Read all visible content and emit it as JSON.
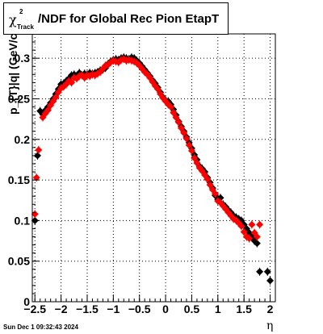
{
  "title": {
    "chi": "χ",
    "sup": "2",
    "sub": "Track",
    "rest": "/NDF for Global Rec Pion EtapT"
  },
  "ylabel": "p_{T}|q| (GeV/c",
  "xlabel": "η",
  "timestamp": "Sun Dec  1 09:32:43 2024",
  "colors": {
    "series_black": "#000000",
    "series_red": "#ff0000",
    "grid": "#000000"
  },
  "chart_data": {
    "type": "scatter",
    "title": "χ²_Track/NDF for Global Rec Pion EtapT",
    "xlabel": "η",
    "ylabel": "p_{T}|q| (GeV/c",
    "xlim": [
      -2.55,
      2.1
    ],
    "ylim": [
      0,
      0.33
    ],
    "grid": true,
    "xticks": [
      -2.5,
      -2,
      -1.5,
      -1,
      -0.5,
      0,
      0.5,
      1,
      1.5,
      2
    ],
    "xtick_labels": [
      "−2.5",
      "−2",
      "−1.5",
      "−1",
      "−0.5",
      "0",
      "0.5",
      "1",
      "1.5",
      "2"
    ],
    "yticks": [
      0,
      0.05,
      0.1,
      0.15,
      0.2,
      0.25,
      0.3
    ],
    "ytick_labels": [
      "0",
      "0.05",
      "0.1",
      "0.15",
      "0.2",
      "0.25",
      "0.3"
    ],
    "series": [
      {
        "color": "#000000",
        "points": [
          [
            -2.5,
            0.1
          ],
          [
            -2.45,
            0.18
          ],
          [
            -2.4,
            0.235
          ],
          [
            -2.35,
            0.231
          ],
          [
            -2.3,
            0.236
          ],
          [
            -2.25,
            0.24
          ],
          [
            -2.2,
            0.245
          ],
          [
            -2.15,
            0.25
          ],
          [
            -2.1,
            0.256
          ],
          [
            -2.05,
            0.262
          ],
          [
            -2.0,
            0.268
          ],
          [
            -1.95,
            0.269
          ],
          [
            -1.9,
            0.272
          ],
          [
            -1.85,
            0.275
          ],
          [
            -1.8,
            0.279
          ],
          [
            -1.75,
            0.28
          ],
          [
            -1.7,
            0.278
          ],
          [
            -1.65,
            0.282
          ],
          [
            -1.6,
            0.279
          ],
          [
            -1.55,
            0.281
          ],
          [
            -1.5,
            0.28
          ],
          [
            -1.45,
            0.282
          ],
          [
            -1.4,
            0.281
          ],
          [
            -1.35,
            0.282
          ],
          [
            -1.3,
            0.283
          ],
          [
            -1.25,
            0.285
          ],
          [
            -1.2,
            0.286
          ],
          [
            -1.15,
            0.288
          ],
          [
            -1.1,
            0.293
          ],
          [
            -1.05,
            0.296
          ],
          [
            -1.0,
            0.298
          ],
          [
            -0.95,
            0.299
          ],
          [
            -0.9,
            0.298
          ],
          [
            -0.85,
            0.3
          ],
          [
            -0.8,
            0.301
          ],
          [
            -0.75,
            0.3
          ],
          [
            -0.7,
            0.299
          ],
          [
            -0.65,
            0.301
          ],
          [
            -0.6,
            0.3
          ],
          [
            -0.55,
            0.297
          ],
          [
            -0.5,
            0.294
          ],
          [
            -0.45,
            0.29
          ],
          [
            -0.4,
            0.286
          ],
          [
            -0.35,
            0.282
          ],
          [
            -0.3,
            0.278
          ],
          [
            -0.25,
            0.273
          ],
          [
            -0.2,
            0.269
          ],
          [
            -0.15,
            0.264
          ],
          [
            -0.1,
            0.258
          ],
          [
            -0.05,
            0.252
          ],
          [
            0.0,
            0.248
          ],
          [
            0.05,
            0.247
          ],
          [
            0.1,
            0.243
          ],
          [
            0.15,
            0.237
          ],
          [
            0.2,
            0.23
          ],
          [
            0.25,
            0.222
          ],
          [
            0.3,
            0.216
          ],
          [
            0.35,
            0.21
          ],
          [
            0.4,
            0.203
          ],
          [
            0.45,
            0.196
          ],
          [
            0.5,
            0.189
          ],
          [
            0.55,
            0.181
          ],
          [
            0.6,
            0.175
          ],
          [
            0.65,
            0.167
          ],
          [
            0.7,
            0.164
          ],
          [
            0.75,
            0.16
          ],
          [
            0.8,
            0.153
          ],
          [
            0.85,
            0.147
          ],
          [
            0.9,
            0.14
          ],
          [
            0.95,
            0.131
          ],
          [
            1.0,
            0.126
          ],
          [
            1.05,
            0.128
          ],
          [
            1.1,
            0.12
          ],
          [
            1.15,
            0.117
          ],
          [
            1.2,
            0.113
          ],
          [
            1.25,
            0.11
          ],
          [
            1.3,
            0.106
          ],
          [
            1.35,
            0.104
          ],
          [
            1.4,
            0.102
          ],
          [
            1.45,
            0.1
          ],
          [
            1.5,
            0.095
          ],
          [
            1.55,
            0.09
          ],
          [
            1.6,
            0.085
          ],
          [
            1.65,
            0.08
          ],
          [
            1.7,
            0.075
          ],
          [
            1.75,
            0.072
          ],
          [
            1.8,
            0.037
          ],
          [
            1.95,
            0.037
          ],
          [
            2.0,
            0.026
          ]
        ]
      },
      {
        "color": "#ff0000",
        "points": [
          [
            -2.5,
            0.108
          ],
          [
            -2.47,
            0.153
          ],
          [
            -2.43,
            0.187
          ],
          [
            -2.35,
            0.227
          ],
          [
            -2.3,
            0.232
          ],
          [
            -2.25,
            0.236
          ],
          [
            -2.2,
            0.242
          ],
          [
            -2.15,
            0.247
          ],
          [
            -2.1,
            0.252
          ],
          [
            -2.05,
            0.258
          ],
          [
            -2.0,
            0.263
          ],
          [
            -1.95,
            0.265
          ],
          [
            -1.9,
            0.268
          ],
          [
            -1.85,
            0.272
          ],
          [
            -1.8,
            0.27
          ],
          [
            -1.75,
            0.276
          ],
          [
            -1.7,
            0.275
          ],
          [
            -1.65,
            0.278
          ],
          [
            -1.6,
            0.279
          ],
          [
            -1.55,
            0.276
          ],
          [
            -1.5,
            0.279
          ],
          [
            -1.45,
            0.278
          ],
          [
            -1.4,
            0.28
          ],
          [
            -1.35,
            0.279
          ],
          [
            -1.3,
            0.281
          ],
          [
            -1.25,
            0.283
          ],
          [
            -1.2,
            0.287
          ],
          [
            -1.15,
            0.291
          ],
          [
            -1.1,
            0.292
          ],
          [
            -1.05,
            0.295
          ],
          [
            -1.0,
            0.297
          ],
          [
            -0.95,
            0.296
          ],
          [
            -0.9,
            0.295
          ],
          [
            -0.85,
            0.298
          ],
          [
            -0.8,
            0.299
          ],
          [
            -0.75,
            0.297
          ],
          [
            -0.7,
            0.298
          ],
          [
            -0.65,
            0.297
          ],
          [
            -0.6,
            0.296
          ],
          [
            -0.55,
            0.294
          ],
          [
            -0.5,
            0.291
          ],
          [
            -0.45,
            0.287
          ],
          [
            -0.4,
            0.283
          ],
          [
            -0.35,
            0.28
          ],
          [
            -0.3,
            0.276
          ],
          [
            -0.25,
            0.271
          ],
          [
            -0.2,
            0.266
          ],
          [
            -0.15,
            0.262
          ],
          [
            -0.1,
            0.256
          ],
          [
            -0.05,
            0.251
          ],
          [
            0.0,
            0.247
          ],
          [
            0.05,
            0.243
          ],
          [
            0.1,
            0.24
          ],
          [
            0.15,
            0.233
          ],
          [
            0.2,
            0.227
          ],
          [
            0.25,
            0.221
          ],
          [
            0.3,
            0.214
          ],
          [
            0.35,
            0.208
          ],
          [
            0.4,
            0.201
          ],
          [
            0.45,
            0.193
          ],
          [
            0.5,
            0.186
          ],
          [
            0.55,
            0.177
          ],
          [
            0.6,
            0.171
          ],
          [
            0.65,
            0.165
          ],
          [
            0.7,
            0.161
          ],
          [
            0.75,
            0.156
          ],
          [
            0.8,
            0.151
          ],
          [
            0.85,
            0.144
          ],
          [
            0.9,
            0.138
          ],
          [
            0.95,
            0.133
          ],
          [
            1.0,
            0.124
          ],
          [
            1.05,
            0.122
          ],
          [
            1.1,
            0.118
          ],
          [
            1.15,
            0.114
          ],
          [
            1.2,
            0.11
          ],
          [
            1.25,
            0.106
          ],
          [
            1.3,
            0.102
          ],
          [
            1.35,
            0.1
          ],
          [
            1.4,
            0.097
          ],
          [
            1.45,
            0.093
          ],
          [
            1.5,
            0.086
          ],
          [
            1.55,
            0.08
          ],
          [
            1.6,
            0.078
          ],
          [
            1.65,
            0.095
          ],
          [
            1.7,
            0.085
          ],
          [
            1.75,
            0.08
          ],
          [
            1.8,
            0.095
          ]
        ]
      }
    ]
  }
}
